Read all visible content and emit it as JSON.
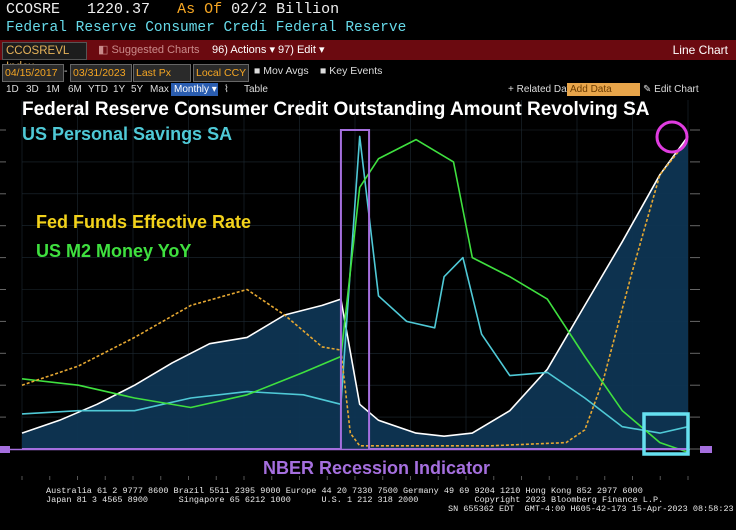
{
  "header": {
    "ticker": "CCOSRE",
    "last_value": "1220.37",
    "as_of_label": "As Of",
    "as_of_value": "02/2 Billion",
    "series_description": "Federal Reserve Consumer Credi Federal Reserve"
  },
  "toolbar": {
    "ticker_field": "CCOSREVL Index",
    "suggested_charts": "Suggested Charts",
    "actions_label": "96) Actions",
    "edit_label": "97) Edit",
    "chart_type": "Line Chart"
  },
  "controls": {
    "start_date": "04/15/2017",
    "end_date": "03/31/2023",
    "price_field": "Last Px",
    "currency": "Local CCY",
    "mov_avgs": "Mov Avgs",
    "key_events": "Key Events",
    "periods": [
      "1D",
      "3D",
      "1M",
      "6M",
      "YTD",
      "1Y",
      "5Y",
      "Max"
    ],
    "frequency": "Monthly",
    "table_label": "Table",
    "related_data": "+ Related Dat",
    "add_data_placeholder": "Add Data",
    "edit_chart": "Edit Chart"
  },
  "chart_data": {
    "type": "line",
    "title": "Federal Reserve Consumer Credit Outstanding Amount Revolving SA",
    "xlim": [
      "2017-04",
      "2023-03"
    ],
    "annotations": [
      "US Personal Savings SA",
      "Fed Funds Effective Rate",
      "US M2 Money YoY",
      "NBER Recession Indicator"
    ],
    "series": [
      {
        "name": "Federal Reserve Consumer Credit Outstanding Amount Revolving SA",
        "color": "#ffffff",
        "x": [
          "2017-04",
          "2017-08",
          "2017-12",
          "2018-04",
          "2018-08",
          "2018-12",
          "2019-04",
          "2019-08",
          "2019-12",
          "2020-02",
          "2020-04",
          "2020-06",
          "2020-10",
          "2021-01",
          "2021-04",
          "2021-08",
          "2021-12",
          "2022-04",
          "2022-08",
          "2022-12",
          "2023-03"
        ],
        "values": [
          0.05,
          0.09,
          0.14,
          0.2,
          0.27,
          0.33,
          0.35,
          0.42,
          0.45,
          0.47,
          0.14,
          0.09,
          0.05,
          0.04,
          0.05,
          0.12,
          0.25,
          0.45,
          0.65,
          0.86,
          0.98
        ]
      },
      {
        "name": "US Personal Savings SA",
        "color": "#4fc9d6",
        "x": [
          "2017-04",
          "2017-10",
          "2018-04",
          "2018-10",
          "2019-04",
          "2019-10",
          "2020-02",
          "2020-04",
          "2020-06",
          "2020-09",
          "2020-12",
          "2021-01",
          "2021-03",
          "2021-05",
          "2021-08",
          "2021-12",
          "2022-04",
          "2022-08",
          "2022-12",
          "2023-03"
        ],
        "values": [
          0.11,
          0.12,
          0.12,
          0.16,
          0.18,
          0.17,
          0.14,
          0.98,
          0.48,
          0.4,
          0.38,
          0.54,
          0.6,
          0.36,
          0.23,
          0.24,
          0.16,
          0.07,
          0.05,
          0.07
        ]
      },
      {
        "name": "Fed Funds Effective Rate",
        "color": "#e6a832",
        "dashed": true,
        "x": [
          "2017-04",
          "2017-10",
          "2018-04",
          "2018-10",
          "2019-04",
          "2019-08",
          "2019-12",
          "2020-02",
          "2020-03",
          "2020-04",
          "2021-06",
          "2022-02",
          "2022-04",
          "2022-06",
          "2022-09",
          "2022-12",
          "2023-03"
        ],
        "values": [
          0.2,
          0.26,
          0.35,
          0.45,
          0.5,
          0.42,
          0.32,
          0.31,
          0.05,
          0.01,
          0.01,
          0.02,
          0.06,
          0.22,
          0.55,
          0.86,
          0.97
        ]
      },
      {
        "name": "US M2 Money YoY",
        "color": "#3fe03f",
        "x": [
          "2017-04",
          "2017-10",
          "2018-04",
          "2018-10",
          "2019-04",
          "2019-10",
          "2020-02",
          "2020-04",
          "2020-06",
          "2020-10",
          "2021-02",
          "2021-04",
          "2021-08",
          "2021-12",
          "2022-04",
          "2022-08",
          "2022-12",
          "2023-03"
        ],
        "values": [
          0.22,
          0.2,
          0.16,
          0.13,
          0.17,
          0.24,
          0.29,
          0.82,
          0.91,
          0.97,
          0.9,
          0.6,
          0.54,
          0.47,
          0.29,
          0.12,
          0.02,
          -0.01
        ]
      },
      {
        "name": "NBER Recession Indicator",
        "color": "#a56fde",
        "x": [
          "2017-04",
          "2020-01",
          "2020-02",
          "2020-04",
          "2020-05",
          "2023-03"
        ],
        "values": [
          0,
          0,
          1,
          1,
          0,
          0
        ]
      }
    ]
  },
  "footer": {
    "line1": "Australia 61 2 9777 8600 Brazil 5511 2395 9000 Europe 44 20 7330 7500 Germany 49 69 9204 1210 Hong Kong 852 2977 6000",
    "line2": "Japan 81 3 4565 8900      Singapore 65 6212 1000      U.S. 1 212 318 2000           Copyright 2023 Bloomberg Finance L.P.",
    "line3": "SN 655362 EDT  GMT-4:00 H605-42-173 15-Apr-2023 08:58:23"
  }
}
